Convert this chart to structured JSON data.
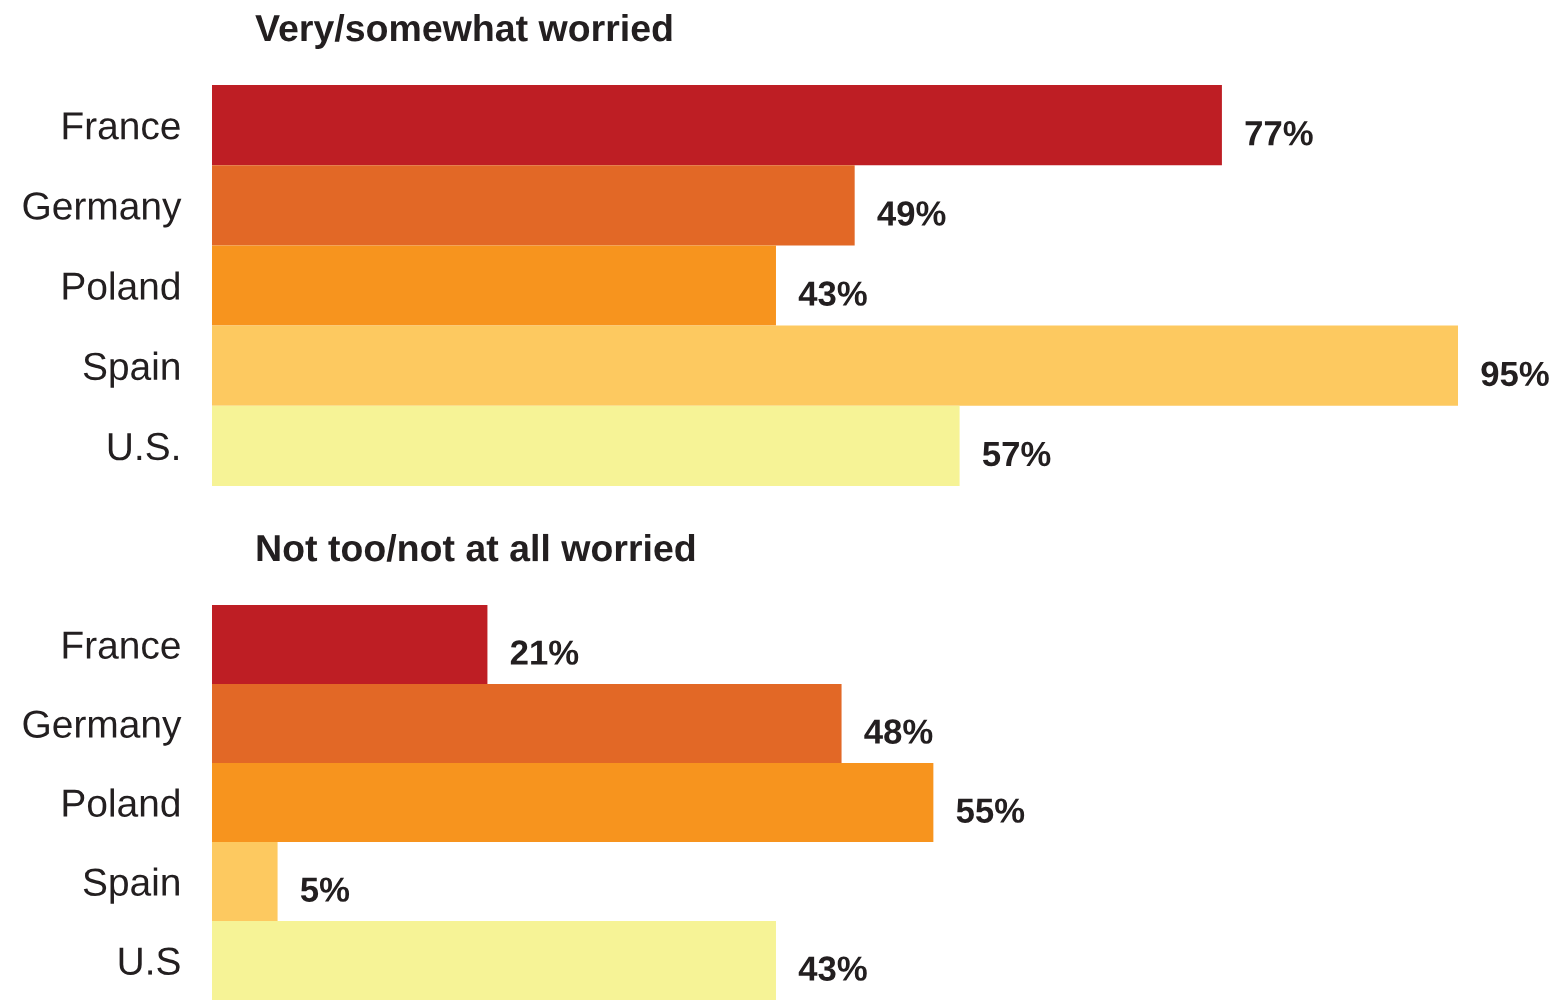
{
  "chart_data": [
    {
      "type": "bar",
      "orientation": "horizontal",
      "title": "Very/somewhat worried",
      "categories": [
        "France",
        "Germany",
        "Poland",
        "Spain",
        "U.S."
      ],
      "values": [
        77,
        49,
        43,
        95,
        57
      ],
      "colors": [
        "#be1e24",
        "#e26826",
        "#f7941e",
        "#fdc960",
        "#f6f396"
      ],
      "value_labels": [
        "77%",
        "49%",
        "43%",
        "95%",
        "57%"
      ],
      "tick_labels": "y",
      "grid": false,
      "legend": false
    },
    {
      "type": "bar",
      "orientation": "horizontal",
      "title": "Not too/not at all worried",
      "categories": [
        "France",
        "Germany",
        "Poland",
        "Spain",
        "U.S"
      ],
      "values": [
        21,
        48,
        55,
        5,
        43
      ],
      "colors": [
        "#be1e24",
        "#e26826",
        "#f7941e",
        "#fdc960",
        "#f6f396"
      ],
      "value_labels": [
        "21%",
        "48%",
        "55%",
        "5%",
        "43%"
      ],
      "tick_labels": "y",
      "grid": false,
      "legend": false
    }
  ]
}
